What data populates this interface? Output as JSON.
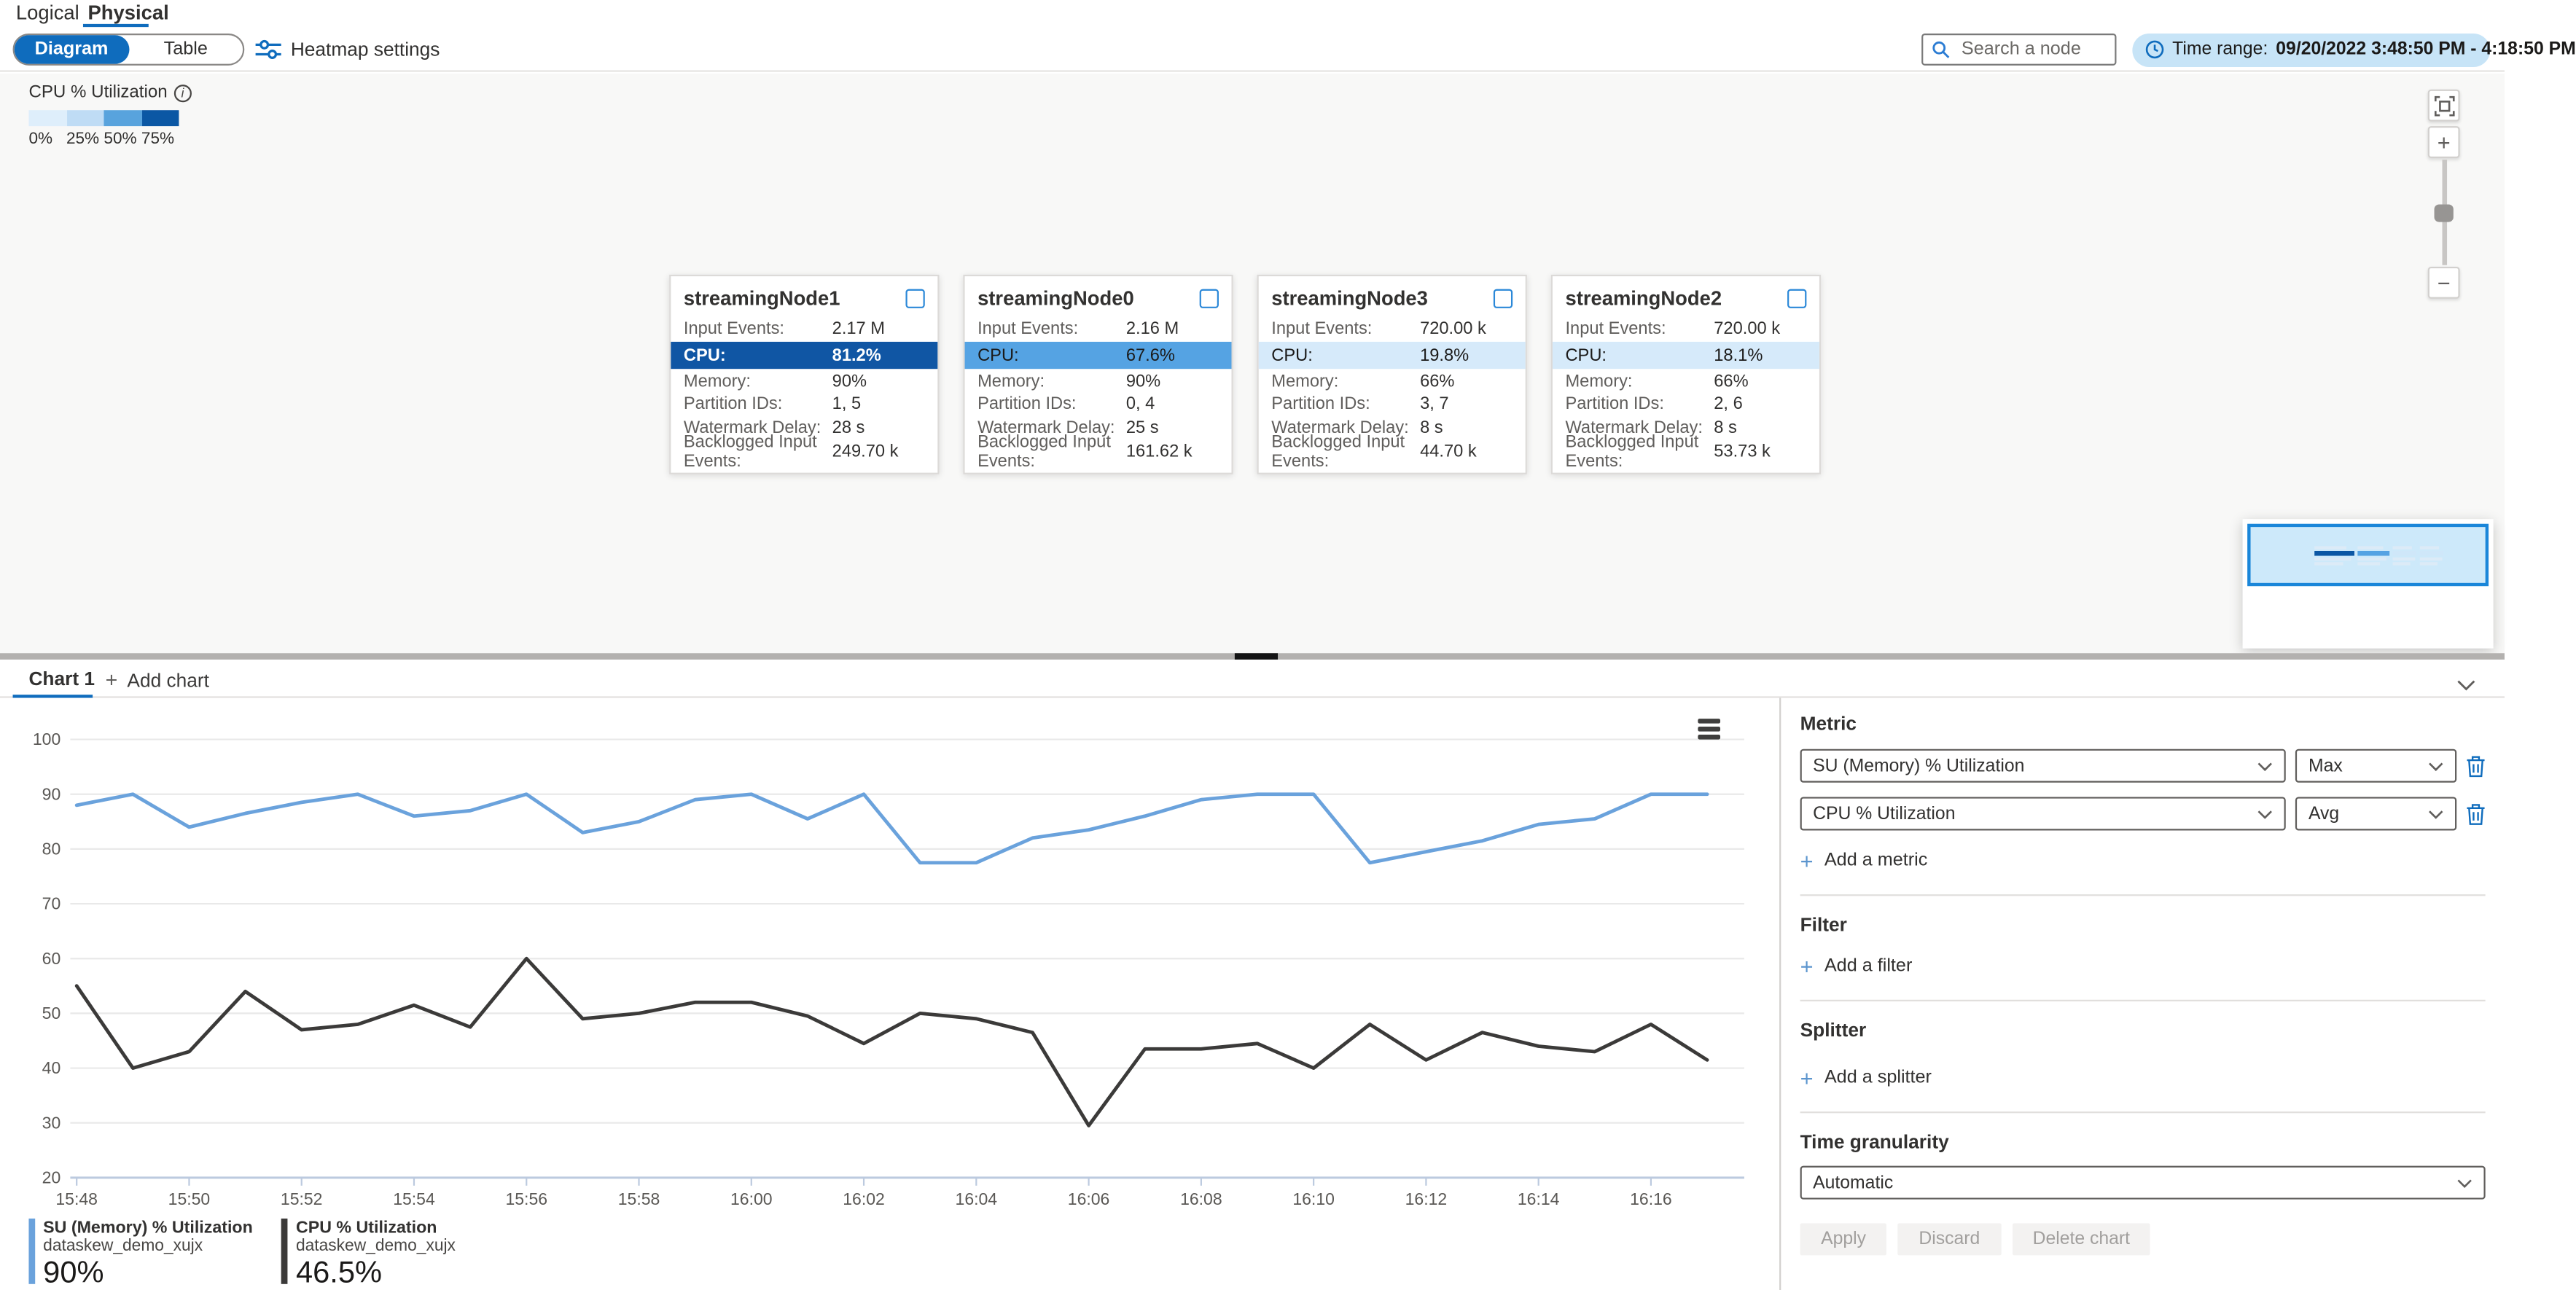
{
  "header": {
    "tabs": [
      {
        "label": "Logical",
        "active": false
      },
      {
        "label": "Physical",
        "active": true
      }
    ]
  },
  "toolbar": {
    "view_toggle": {
      "options": [
        "Diagram",
        "Table"
      ],
      "selected": "Diagram"
    },
    "heatmap_settings_label": "Heatmap settings",
    "search_placeholder": "Search a node",
    "time_range_label": "Time range:",
    "time_range_value": "09/20/2022 3:48:50 PM - 4:18:50 PM"
  },
  "heatmap_legend": {
    "title": "CPU % Utilization",
    "stops": [
      {
        "label": "0%",
        "color": "#deeefb"
      },
      {
        "label": "25%",
        "color": "#bfdcf5"
      },
      {
        "label": "50%",
        "color": "#58a3dd"
      },
      {
        "label": "75%",
        "color": "#0b57a4"
      }
    ]
  },
  "nodes": [
    {
      "name": "streamingNode1",
      "cpu_level": "dark",
      "rows": [
        {
          "label": "Input Events:",
          "value": "2.17 M"
        },
        {
          "label": "CPU:",
          "value": "81.2%",
          "cpu": true
        },
        {
          "label": "Memory:",
          "value": "90%"
        },
        {
          "label": "Partition IDs:",
          "value": "1, 5"
        },
        {
          "label": "Watermark Delay:",
          "value": "28 s"
        },
        {
          "label": "Backlogged Input Events:",
          "value": "249.70 k"
        }
      ]
    },
    {
      "name": "streamingNode0",
      "cpu_level": "medium",
      "rows": [
        {
          "label": "Input Events:",
          "value": "2.16 M"
        },
        {
          "label": "CPU:",
          "value": "67.6%",
          "cpu": true
        },
        {
          "label": "Memory:",
          "value": "90%"
        },
        {
          "label": "Partition IDs:",
          "value": "0, 4"
        },
        {
          "label": "Watermark Delay:",
          "value": "25 s"
        },
        {
          "label": "Backlogged Input Events:",
          "value": "161.62 k"
        }
      ]
    },
    {
      "name": "streamingNode3",
      "cpu_level": "light",
      "rows": [
        {
          "label": "Input Events:",
          "value": "720.00 k"
        },
        {
          "label": "CPU:",
          "value": "19.8%",
          "cpu": true
        },
        {
          "label": "Memory:",
          "value": "66%"
        },
        {
          "label": "Partition IDs:",
          "value": "3, 7"
        },
        {
          "label": "Watermark Delay:",
          "value": "8 s"
        },
        {
          "label": "Backlogged Input Events:",
          "value": "44.70 k"
        }
      ]
    },
    {
      "name": "streamingNode2",
      "cpu_level": "light",
      "rows": [
        {
          "label": "Input Events:",
          "value": "720.00 k"
        },
        {
          "label": "CPU:",
          "value": "18.1%",
          "cpu": true
        },
        {
          "label": "Memory:",
          "value": "66%"
        },
        {
          "label": "Partition IDs:",
          "value": "2, 6"
        },
        {
          "label": "Watermark Delay:",
          "value": "8 s"
        },
        {
          "label": "Backlogged Input Events:",
          "value": "53.73 k"
        }
      ]
    }
  ],
  "chart_tabs": {
    "active_label": "Chart 1",
    "add_label": "Add chart"
  },
  "chart_data": {
    "type": "line",
    "x": [
      "15:48",
      "15:49",
      "15:50",
      "15:51",
      "15:52",
      "15:53",
      "15:54",
      "15:55",
      "15:56",
      "15:57",
      "15:58",
      "15:59",
      "16:00",
      "16:01",
      "16:02",
      "16:03",
      "16:04",
      "16:05",
      "16:06",
      "16:07",
      "16:08",
      "16:09",
      "16:10",
      "16:11",
      "16:12",
      "16:13",
      "16:14",
      "16:15",
      "16:16",
      "16:17"
    ],
    "xtick_labels": [
      "15:48",
      "15:50",
      "15:52",
      "15:54",
      "15:56",
      "15:58",
      "16:00",
      "16:02",
      "16:04",
      "16:06",
      "16:08",
      "16:10",
      "16:12",
      "16:14",
      "16:16"
    ],
    "yticks": [
      20,
      30,
      40,
      50,
      60,
      70,
      80,
      90,
      100
    ],
    "ylim": [
      20,
      100
    ],
    "grid": true,
    "legend_position": "bottom-left",
    "series": [
      {
        "name": "SU (Memory) % Utilization",
        "scope": "dataskew_demo_xujx",
        "aggregation": "Max",
        "color": "#6aa2dc",
        "current_value": "90%",
        "values": [
          88,
          90,
          84,
          86.5,
          88.5,
          90,
          86,
          87,
          90,
          83,
          85,
          89,
          90,
          85.5,
          90,
          77.5,
          77.5,
          82,
          83.5,
          86,
          89,
          90,
          90,
          77.5,
          79.5,
          81.5,
          84.5,
          85.5,
          90,
          90
        ]
      },
      {
        "name": "CPU % Utilization",
        "scope": "dataskew_demo_xujx",
        "aggregation": "Avg",
        "color": "#3b3a39",
        "current_value": "46.5%",
        "values": [
          55,
          40,
          43,
          54,
          47,
          48,
          51.5,
          47.5,
          60,
          49,
          50,
          52,
          52,
          49.5,
          44.5,
          50,
          49,
          46.5,
          29.5,
          43.5,
          43.5,
          44.5,
          40,
          48,
          41.5,
          46.5,
          44,
          43,
          48,
          41.5
        ]
      }
    ]
  },
  "settings_panel": {
    "metric_section": {
      "title": "Metric",
      "rows": [
        {
          "metric": "SU (Memory) % Utilization",
          "aggregation": "Max"
        },
        {
          "metric": "CPU % Utilization",
          "aggregation": "Avg"
        }
      ],
      "add_label": "Add a metric"
    },
    "filter_section": {
      "title": "Filter",
      "add_label": "Add a filter"
    },
    "splitter_section": {
      "title": "Splitter",
      "add_label": "Add a splitter"
    },
    "time_granularity": {
      "title": "Time granularity",
      "value": "Automatic"
    },
    "buttons": {
      "apply": "Apply",
      "discard": "Discard",
      "delete": "Delete chart"
    }
  }
}
